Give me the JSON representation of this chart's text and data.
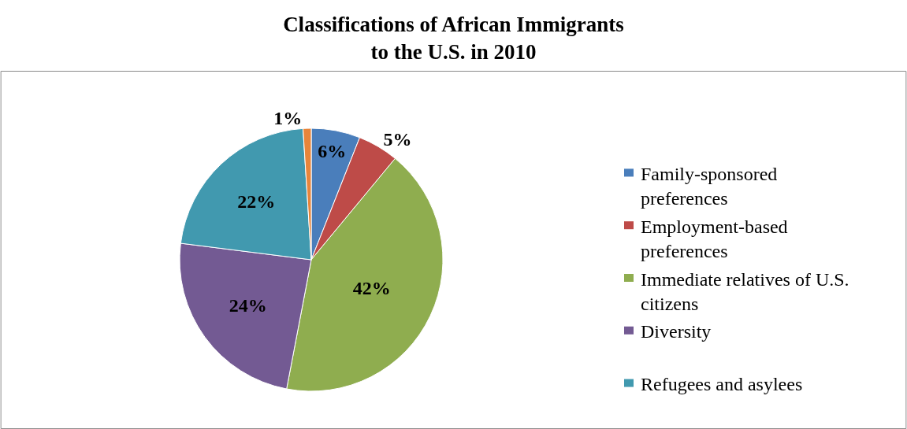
{
  "chart_data": {
    "type": "pie",
    "title": "Classifications of African Immigrants\nto the U.S. in 2010",
    "categories": [
      "Family-sponsored preferences",
      "Employment-based preferences",
      "Immediate relatives of U.S. citizens",
      "Diversity",
      "Refugees and asylees",
      null
    ],
    "values": [
      6,
      5,
      42,
      24,
      22,
      1
    ],
    "colors": [
      "#4a7ebb",
      "#be4b48",
      "#8fad4f",
      "#735a93",
      "#4199af",
      "#e8853b"
    ],
    "value_labels": [
      "6%",
      "5%",
      "42%",
      "24%",
      "22%",
      "1%"
    ],
    "legend": "right"
  }
}
